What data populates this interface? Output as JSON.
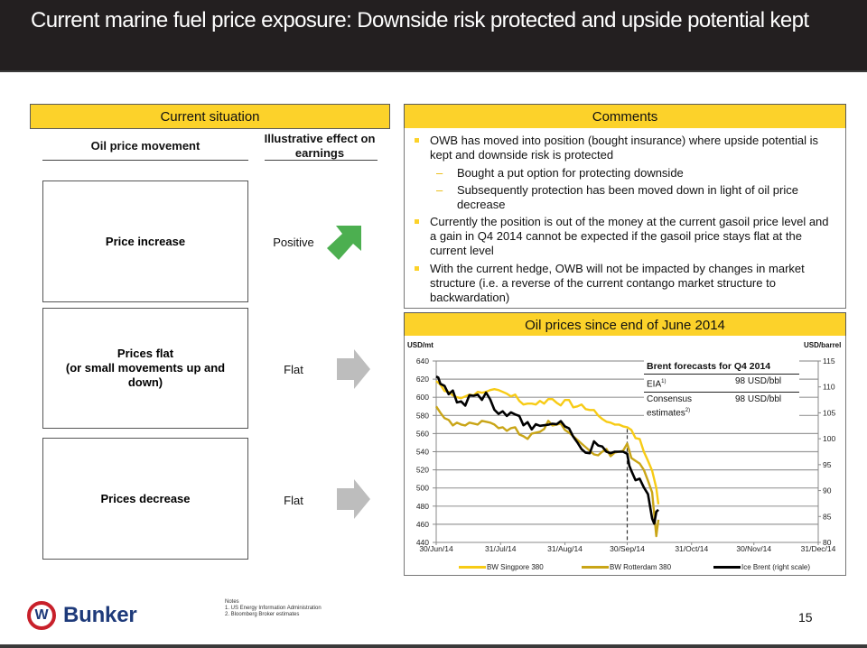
{
  "header": {
    "title": "Current marine fuel price exposure: Downside risk protected and upside potential kept"
  },
  "current_situation": {
    "heading": "Current situation",
    "col_movement": "Oil price movement",
    "col_effect": "Illustrative effect on earnings",
    "rows": [
      {
        "movement": "Price increase",
        "effect": "Positive",
        "arrow_icon": "arrow-up-right-icon",
        "arrow_color": "#4caf50"
      },
      {
        "movement": "Prices flat\n(or small movements up and down)",
        "movement_line1": "Prices flat",
        "movement_line2": "(or small movements up and down)",
        "effect": "Flat",
        "arrow_icon": "arrow-right-icon",
        "arrow_color": "#bdbdbd"
      },
      {
        "movement": "Prices decrease",
        "effect": "Flat",
        "arrow_icon": "arrow-right-icon",
        "arrow_color": "#bdbdbd"
      }
    ]
  },
  "comments": {
    "heading": "Comments",
    "items": [
      {
        "level": 1,
        "text": "OWB has moved into position (bought insurance) where upside potential is kept and downside risk is protected"
      },
      {
        "level": 2,
        "text": "Bought a put option for protecting downside"
      },
      {
        "level": 2,
        "text": "Subsequently protection has been moved down in light of oil price decrease"
      },
      {
        "level": 1,
        "text": "Currently the position is out of the money at the current gasoil price level and a gain in Q4 2014 cannot be expected if the gasoil price stays flat at the current level"
      },
      {
        "level": 1,
        "text": "With the current hedge, OWB will not be impacted by changes in market structure (i.e. a reverse of the current contango market structure to backwardation)"
      }
    ]
  },
  "forecast_table": {
    "title": "Brent forecasts for Q4 2014",
    "rows": [
      {
        "label": "EIA",
        "note": "1)",
        "value": "98 USD/bbl"
      },
      {
        "label": "Consensus estimates",
        "label_line1": "Consensus",
        "label_line2": "estimates",
        "note": "2)",
        "value": "98 USD/bbl"
      }
    ]
  },
  "chart_data": {
    "type": "line",
    "title": "Oil prices since end of June 2014",
    "ylabel": "USD/mt",
    "y2label": "USD/barrel",
    "ylim": [
      440,
      640
    ],
    "y2lim": [
      80,
      115
    ],
    "yticks": [
      440,
      460,
      480,
      500,
      520,
      540,
      560,
      580,
      600,
      620,
      640
    ],
    "y2ticks": [
      80,
      85,
      90,
      95,
      100,
      105,
      110,
      115
    ],
    "xticks": [
      "30/Jun/14",
      "31/Jul/14",
      "31/Aug/14",
      "30/Sep/14",
      "31/Oct/14",
      "30/Nov/14",
      "31/Dec/14"
    ],
    "xtick_days": [
      0,
      31,
      62,
      92,
      123,
      153,
      184
    ],
    "x_unit": "days since 30/Jun/14",
    "grid": true,
    "vline_day": 92,
    "legend_position": "bottom",
    "series": [
      {
        "name": "BW Singpore 380",
        "axis": "left",
        "color": "#f7cb15",
        "x": [
          0,
          2,
          4,
          6,
          8,
          10,
          12,
          14,
          16,
          18,
          20,
          22,
          24,
          26,
          28,
          30,
          32,
          34,
          36,
          38,
          40,
          42,
          44,
          46,
          48,
          50,
          52,
          54,
          56,
          58,
          60,
          62,
          64,
          66,
          68,
          70,
          72,
          74,
          76,
          78,
          80,
          82,
          84,
          86,
          88,
          90,
          92,
          94,
          96,
          98,
          100,
          102,
          104,
          106,
          107
        ],
        "values": [
          618,
          614,
          607,
          606,
          602,
          600,
          599,
          601,
          603,
          602,
          606,
          605,
          606,
          608,
          609,
          608,
          606,
          604,
          601,
          603,
          596,
          592,
          593,
          593,
          592,
          596,
          593,
          598,
          598,
          594,
          591,
          597,
          597,
          589,
          590,
          592,
          587,
          586,
          586,
          580,
          576,
          573,
          572,
          570,
          570,
          568,
          567,
          564,
          555,
          554,
          540,
          530,
          519,
          500,
          482
        ]
      },
      {
        "name": "BW Rotterdam 380",
        "axis": "left",
        "color": "#c9a517",
        "x": [
          0,
          2,
          4,
          6,
          8,
          10,
          12,
          14,
          16,
          18,
          20,
          22,
          24,
          26,
          28,
          30,
          32,
          34,
          36,
          38,
          40,
          42,
          44,
          46,
          48,
          50,
          52,
          54,
          56,
          58,
          60,
          62,
          64,
          66,
          68,
          70,
          72,
          74,
          76,
          78,
          80,
          82,
          84,
          86,
          88,
          90,
          92,
          94,
          96,
          98,
          100,
          102,
          104,
          106,
          107
        ],
        "values": [
          590,
          583,
          577,
          575,
          569,
          572,
          570,
          569,
          572,
          571,
          570,
          574,
          573,
          572,
          570,
          566,
          567,
          563,
          566,
          567,
          559,
          557,
          554,
          560,
          561,
          562,
          565,
          574,
          569,
          570,
          571,
          564,
          561,
          557,
          553,
          549,
          545,
          541,
          537,
          536,
          540,
          543,
          535,
          539,
          540,
          541,
          549,
          533,
          530,
          527,
          520,
          508,
          495,
          447,
          465
        ]
      },
      {
        "name": "Ice Brent (right scale)",
        "axis": "right",
        "color": "#000000",
        "x": [
          0,
          1,
          2,
          4,
          6,
          8,
          10,
          12,
          14,
          16,
          18,
          20,
          22,
          24,
          26,
          28,
          30,
          32,
          34,
          36,
          38,
          40,
          42,
          44,
          46,
          48,
          50,
          52,
          54,
          56,
          58,
          60,
          62,
          64,
          66,
          68,
          70,
          72,
          74,
          76,
          78,
          80,
          82,
          84,
          86,
          88,
          90,
          92,
          93,
          94,
          96,
          98,
          100,
          102,
          104,
          105,
          106,
          107
        ],
        "values": [
          112.0,
          111.8,
          110.6,
          110.2,
          108.6,
          109.3,
          107.0,
          107.2,
          106.4,
          108.4,
          108.3,
          108.5,
          107.5,
          108.9,
          107.6,
          105.6,
          104.8,
          105.3,
          104.4,
          105.1,
          104.7,
          104.4,
          102.6,
          103.2,
          101.8,
          102.8,
          102.5,
          102.6,
          102.7,
          102.9,
          102.8,
          103.4,
          102.4,
          102.0,
          100.4,
          99.3,
          98.0,
          97.3,
          97.2,
          99.5,
          98.7,
          98.5,
          97.5,
          97.2,
          97.5,
          97.5,
          97.5,
          97.1,
          94.8,
          93.8,
          92.0,
          92.3,
          90.6,
          89.3,
          84.6,
          83.6,
          85.9,
          86.3
        ]
      }
    ]
  },
  "footer": {
    "logo_letter": "W",
    "logo_text": "Bunker",
    "notes_title": "Notes",
    "notes": [
      "1.   US Energy Information Administration",
      "2.   Bloomberg Broker estimates"
    ],
    "page_number": "15"
  }
}
